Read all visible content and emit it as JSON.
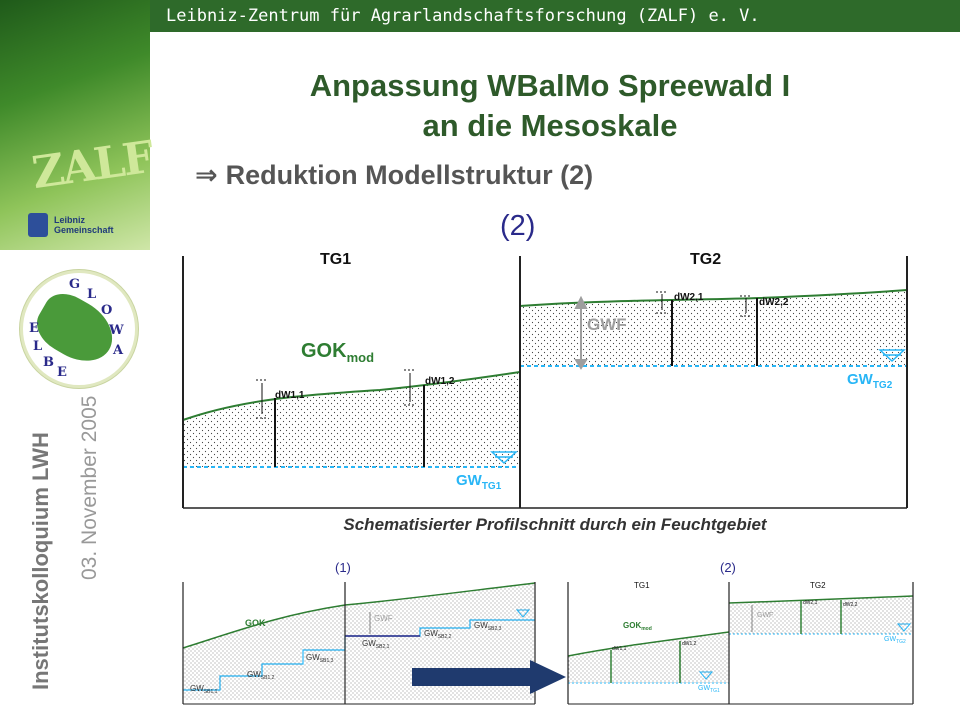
{
  "header": {
    "institute": "Leibniz-Zentrum für Agrarlandschaftsforschung (ZALF) e. V."
  },
  "title": {
    "line1": "Anpassung WBalMo Spreewald I",
    "line2": "an die Mesoskale"
  },
  "subtitle": {
    "arrow": "⇒",
    "text": "Reduktion Modellstruktur (2)"
  },
  "part_label": "(2)",
  "sidebar": {
    "logo_text": "ZALF",
    "leibniz": {
      "line1": "Leibniz",
      "line2": "Gemeinschaft"
    },
    "glowa": [
      "G",
      "L",
      "O",
      "W",
      "A",
      "E",
      "L",
      "B",
      "E"
    ],
    "event": "Institutskolloquium LWH",
    "date": "03. November 2005"
  },
  "main_diagram": {
    "tg1": "TG1",
    "tg2": "TG2",
    "gok": "GOK",
    "gok_sub": "mod",
    "gwf": "GWF",
    "dw11": "dW1,1",
    "dw12": "dW1,2",
    "dw21": "dW2,1",
    "dw22": "dW2,2",
    "gw_tg1": "GW",
    "gw_tg1_sub": "TG1",
    "gw_tg2": "GW",
    "gw_tg2_sub": "TG2"
  },
  "caption": "Schematisierter Profilschnitt durch ein Feuchtgebiet",
  "thumb1": {
    "label": "(1)",
    "gok": "GOK",
    "gwf": "GWF",
    "gw": [
      {
        "t": "GW",
        "s": "SB1,1"
      },
      {
        "t": "GW",
        "s": "SB1,2"
      },
      {
        "t": "GW",
        "s": "SB1,3"
      },
      {
        "t": "GW",
        "s": "SB2,1"
      },
      {
        "t": "GW",
        "s": "SB2,2"
      },
      {
        "t": "GW",
        "s": "SB2,3"
      }
    ]
  },
  "thumb2": {
    "label": "(2)",
    "tg1": "TG1",
    "tg2": "TG2",
    "gok": "GOK",
    "gok_sub": "mod",
    "gwf": "GWF",
    "dw11": "dW1,1",
    "dw12": "dW1,2",
    "dw21": "dW2,1",
    "dw22": "dW2,2",
    "gw_tg1": "GW",
    "gw_tg1_sub": "TG1",
    "gw_tg2": "GW",
    "gw_tg2_sub": "TG2"
  },
  "colors": {
    "green_dark": "#2e6a2a",
    "ground_line": "#2e7d32",
    "gw_line": "#29b6f6",
    "navy": "#1f3a6e"
  }
}
